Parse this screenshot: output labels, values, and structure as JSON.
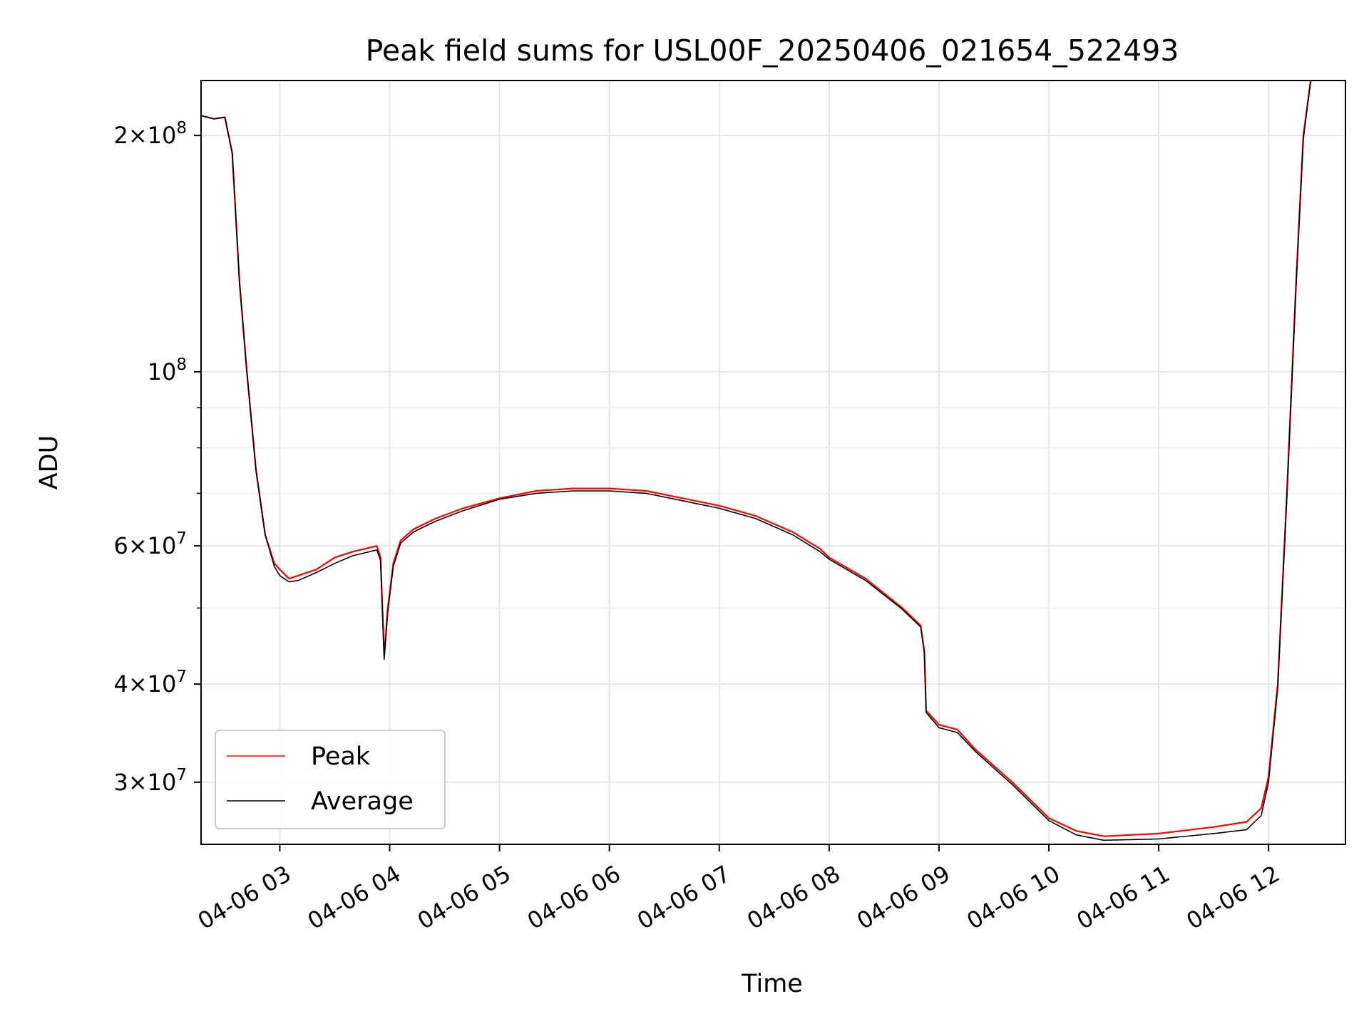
{
  "chart_data": {
    "type": "line",
    "title": "Peak field sums for USL00F_20250406_021654_522493",
    "xlabel": "Time",
    "ylabel": "ADU",
    "yscale": "log",
    "xlim": [
      "2025-04-06T02:17:00",
      "2025-04-06T12:42:00"
    ],
    "ylim": [
      25000000,
      235000000
    ],
    "grid": true,
    "legend_position": "lower-left",
    "x_ticks": [
      {
        "value": "2025-04-06T03:00:00",
        "label": "04-06 03"
      },
      {
        "value": "2025-04-06T04:00:00",
        "label": "04-06 04"
      },
      {
        "value": "2025-04-06T05:00:00",
        "label": "04-06 05"
      },
      {
        "value": "2025-04-06T06:00:00",
        "label": "04-06 06"
      },
      {
        "value": "2025-04-06T07:00:00",
        "label": "04-06 07"
      },
      {
        "value": "2025-04-06T08:00:00",
        "label": "04-06 08"
      },
      {
        "value": "2025-04-06T09:00:00",
        "label": "04-06 09"
      },
      {
        "value": "2025-04-06T10:00:00",
        "label": "04-06 10"
      },
      {
        "value": "2025-04-06T11:00:00",
        "label": "04-06 11"
      },
      {
        "value": "2025-04-06T12:00:00",
        "label": "04-06 12"
      }
    ],
    "y_major_ticks": [
      {
        "value": 30000000,
        "mant": "3",
        "exp": "7"
      },
      {
        "value": 40000000,
        "mant": "4",
        "exp": "7"
      },
      {
        "value": 60000000,
        "mant": "6",
        "exp": "7"
      },
      {
        "value": 100000000,
        "mant": "",
        "exp": "8"
      },
      {
        "value": 200000000,
        "mant": "2",
        "exp": "8"
      }
    ],
    "y_minor_ticks": [
      50000000,
      70000000,
      80000000,
      90000000
    ],
    "series": [
      {
        "name": "Peak",
        "color": "#ff0000",
        "points": [
          [
            "2025-04-06T02:17:00",
            212000000
          ],
          [
            "2025-04-06T02:24:00",
            210000000
          ],
          [
            "2025-04-06T02:30:00",
            211000000
          ],
          [
            "2025-04-06T02:34:00",
            190000000
          ],
          [
            "2025-04-06T02:38:00",
            130000000
          ],
          [
            "2025-04-06T02:42:00",
            100000000
          ],
          [
            "2025-04-06T02:47:00",
            75000000
          ],
          [
            "2025-04-06T02:52:00",
            62000000
          ],
          [
            "2025-04-06T02:57:00",
            57000000
          ],
          [
            "2025-04-06T03:00:00",
            56000000
          ],
          [
            "2025-04-06T03:05:00",
            54500000
          ],
          [
            "2025-04-06T03:10:00",
            55000000
          ],
          [
            "2025-04-06T03:20:00",
            56000000
          ],
          [
            "2025-04-06T03:30:00",
            58000000
          ],
          [
            "2025-04-06T03:40:00",
            59000000
          ],
          [
            "2025-04-06T03:53:00",
            60000000
          ],
          [
            "2025-04-06T03:55:00",
            58000000
          ],
          [
            "2025-04-06T03:57:00",
            43500000
          ],
          [
            "2025-04-06T03:59:00",
            50000000
          ],
          [
            "2025-04-06T04:02:00",
            57000000
          ],
          [
            "2025-04-06T04:06:00",
            61000000
          ],
          [
            "2025-04-06T04:13:00",
            63000000
          ],
          [
            "2025-04-06T04:25:00",
            65000000
          ],
          [
            "2025-04-06T04:40:00",
            67000000
          ],
          [
            "2025-04-06T05:00:00",
            69000000
          ],
          [
            "2025-04-06T05:20:00",
            70500000
          ],
          [
            "2025-04-06T05:40:00",
            71000000
          ],
          [
            "2025-04-06T06:00:00",
            71000000
          ],
          [
            "2025-04-06T06:20:00",
            70500000
          ],
          [
            "2025-04-06T06:40:00",
            69000000
          ],
          [
            "2025-04-06T07:00:00",
            67500000
          ],
          [
            "2025-04-06T07:20:00",
            65500000
          ],
          [
            "2025-04-06T07:40:00",
            62500000
          ],
          [
            "2025-04-06T07:55:00",
            59500000
          ],
          [
            "2025-04-06T08:00:00",
            58000000
          ],
          [
            "2025-04-06T08:20:00",
            54500000
          ],
          [
            "2025-04-06T08:40:00",
            50000000
          ],
          [
            "2025-04-06T08:50:00",
            47500000
          ],
          [
            "2025-04-06T08:52:00",
            44000000
          ],
          [
            "2025-04-06T08:53:00",
            37000000
          ],
          [
            "2025-04-06T09:00:00",
            35500000
          ],
          [
            "2025-04-06T09:10:00",
            35000000
          ],
          [
            "2025-04-06T09:20:00",
            33000000
          ],
          [
            "2025-04-06T09:40:00",
            30000000
          ],
          [
            "2025-04-06T10:00:00",
            27000000
          ],
          [
            "2025-04-06T10:15:00",
            26000000
          ],
          [
            "2025-04-06T10:30:00",
            25600000
          ],
          [
            "2025-04-06T11:00:00",
            25800000
          ],
          [
            "2025-04-06T11:30:00",
            26300000
          ],
          [
            "2025-04-06T11:48:00",
            26700000
          ],
          [
            "2025-04-06T11:56:00",
            27800000
          ],
          [
            "2025-04-06T12:00:00",
            30500000
          ],
          [
            "2025-04-06T12:05:00",
            40000000
          ],
          [
            "2025-04-06T12:10:00",
            70000000
          ],
          [
            "2025-04-06T12:15:00",
            130000000
          ],
          [
            "2025-04-06T12:19:00",
            200000000
          ],
          [
            "2025-04-06T12:23:00",
            235000000
          ]
        ]
      },
      {
        "name": "Average",
        "color": "#000000",
        "points": [
          [
            "2025-04-06T02:17:00",
            212000000
          ],
          [
            "2025-04-06T02:24:00",
            210000000
          ],
          [
            "2025-04-06T02:30:00",
            211000000
          ],
          [
            "2025-04-06T02:34:00",
            190000000
          ],
          [
            "2025-04-06T02:38:00",
            130000000
          ],
          [
            "2025-04-06T02:42:00",
            100000000
          ],
          [
            "2025-04-06T02:47:00",
            75000000
          ],
          [
            "2025-04-06T02:52:00",
            62000000
          ],
          [
            "2025-04-06T02:57:00",
            56500000
          ],
          [
            "2025-04-06T03:00:00",
            55000000
          ],
          [
            "2025-04-06T03:05:00",
            54000000
          ],
          [
            "2025-04-06T03:10:00",
            54200000
          ],
          [
            "2025-04-06T03:20:00",
            55500000
          ],
          [
            "2025-04-06T03:30:00",
            57000000
          ],
          [
            "2025-04-06T03:40:00",
            58300000
          ],
          [
            "2025-04-06T03:53:00",
            59300000
          ],
          [
            "2025-04-06T03:55:00",
            57500000
          ],
          [
            "2025-04-06T03:57:00",
            43000000
          ],
          [
            "2025-04-06T03:59:00",
            49500000
          ],
          [
            "2025-04-06T04:02:00",
            56500000
          ],
          [
            "2025-04-06T04:06:00",
            60500000
          ],
          [
            "2025-04-06T04:13:00",
            62500000
          ],
          [
            "2025-04-06T04:25:00",
            64500000
          ],
          [
            "2025-04-06T04:40:00",
            66500000
          ],
          [
            "2025-04-06T05:00:00",
            68800000
          ],
          [
            "2025-04-06T05:20:00",
            70000000
          ],
          [
            "2025-04-06T05:40:00",
            70500000
          ],
          [
            "2025-04-06T06:00:00",
            70500000
          ],
          [
            "2025-04-06T06:20:00",
            70000000
          ],
          [
            "2025-04-06T06:40:00",
            68500000
          ],
          [
            "2025-04-06T07:00:00",
            67000000
          ],
          [
            "2025-04-06T07:20:00",
            65000000
          ],
          [
            "2025-04-06T07:40:00",
            62000000
          ],
          [
            "2025-04-06T07:55:00",
            59000000
          ],
          [
            "2025-04-06T08:00:00",
            57700000
          ],
          [
            "2025-04-06T08:20:00",
            54200000
          ],
          [
            "2025-04-06T08:40:00",
            49800000
          ],
          [
            "2025-04-06T08:50:00",
            47300000
          ],
          [
            "2025-04-06T08:52:00",
            43800000
          ],
          [
            "2025-04-06T08:53:00",
            36800000
          ],
          [
            "2025-04-06T09:00:00",
            35200000
          ],
          [
            "2025-04-06T09:10:00",
            34700000
          ],
          [
            "2025-04-06T09:20:00",
            32800000
          ],
          [
            "2025-04-06T09:40:00",
            29800000
          ],
          [
            "2025-04-06T10:00:00",
            26800000
          ],
          [
            "2025-04-06T10:15:00",
            25700000
          ],
          [
            "2025-04-06T10:30:00",
            25300000
          ],
          [
            "2025-04-06T11:00:00",
            25400000
          ],
          [
            "2025-04-06T11:30:00",
            25800000
          ],
          [
            "2025-04-06T11:48:00",
            26100000
          ],
          [
            "2025-04-06T11:56:00",
            27200000
          ],
          [
            "2025-04-06T12:00:00",
            30000000
          ],
          [
            "2025-04-06T12:05:00",
            39500000
          ],
          [
            "2025-04-06T12:10:00",
            69000000
          ],
          [
            "2025-04-06T12:15:00",
            128000000
          ],
          [
            "2025-04-06T12:19:00",
            198000000
          ],
          [
            "2025-04-06T12:23:00",
            235000000
          ]
        ]
      }
    ]
  }
}
